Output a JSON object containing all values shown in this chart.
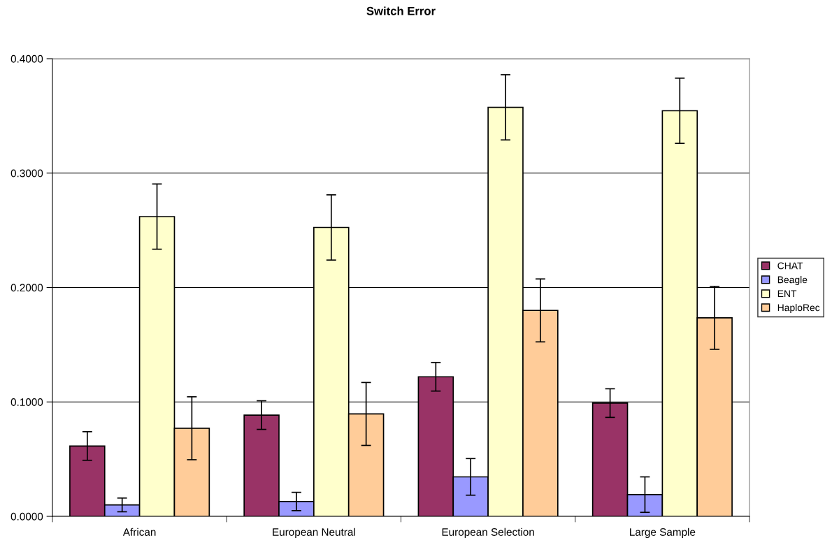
{
  "chart_data": {
    "type": "bar",
    "title": "Switch Error",
    "categories": [
      "African",
      "European Neutral",
      "European Selection",
      "Large Sample"
    ],
    "series": [
      {
        "name": "CHAT",
        "color": "#993366",
        "values": [
          0.0615,
          0.0885,
          0.122,
          0.099
        ],
        "errors": [
          0.0125,
          0.0125,
          0.0125,
          0.0125
        ]
      },
      {
        "name": "Beagle",
        "color": "#9999ff",
        "values": [
          0.01,
          0.013,
          0.0345,
          0.019
        ],
        "errors": [
          0.006,
          0.008,
          0.016,
          0.0155
        ]
      },
      {
        "name": "ENT",
        "color": "#ffffcc",
        "values": [
          0.262,
          0.2525,
          0.3575,
          0.3545
        ],
        "errors": [
          0.0285,
          0.0285,
          0.0285,
          0.0285
        ]
      },
      {
        "name": "HaploRec",
        "color": "#ffcc99",
        "values": [
          0.077,
          0.0895,
          0.18,
          0.1735
        ],
        "errors": [
          0.0275,
          0.0275,
          0.0275,
          0.0275
        ]
      }
    ],
    "ylim": [
      0,
      0.4
    ],
    "yticks": [
      {
        "value": 0,
        "label": "0.0000"
      },
      {
        "value": 0.1,
        "label": "0.1000"
      },
      {
        "value": 0.2,
        "label": "0.2000"
      },
      {
        "value": 0.3,
        "label": "0.3000"
      },
      {
        "value": 0.4,
        "label": "0.4000"
      }
    ],
    "grid": "y",
    "legend": "right"
  }
}
